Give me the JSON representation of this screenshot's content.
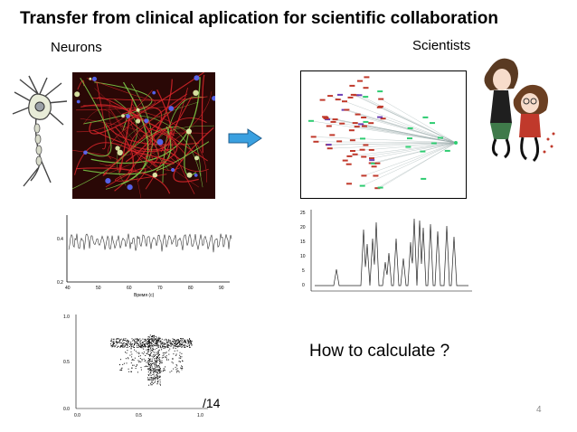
{
  "slide": {
    "title": "Transfer from clinical aplication for scientific collaboration",
    "neurons_label": "Neurons",
    "scientists_label": "Scientists",
    "question": "How to calculate ?",
    "slide_ref": "/14",
    "page_number": "4"
  },
  "icons": {
    "neuron": "neuron-drawing-icon",
    "arrow": "right-arrow-icon",
    "scientists": "scientists-cartoon-icon"
  },
  "colors": {
    "arrow_fill": "#3aa0e0",
    "micrograph_bg": "#2a0806",
    "fiber_red": "#d8262a",
    "fiber_green": "#7fd24a",
    "nuclei_blue": "#5a6cff",
    "network_node_red": "#c0392b",
    "network_node_green": "#2ecc71",
    "network_node_purple": "#6c3fb5"
  },
  "charts": {
    "left_trace": {
      "y_ticks": [
        "0.4",
        "0.2"
      ],
      "x_ticks": [
        "40",
        "50",
        "60",
        "70",
        "80",
        "90"
      ],
      "xlabel": "Время (с)"
    },
    "right_trace": {
      "y_ticks": [
        "25",
        "20",
        "15",
        "10",
        "5",
        "0"
      ]
    },
    "scatter": {
      "y_ticks": [
        "1.0",
        "0.5",
        "0.0"
      ],
      "x_ticks": [
        "0.0",
        "0.5",
        "1.0"
      ]
    }
  }
}
